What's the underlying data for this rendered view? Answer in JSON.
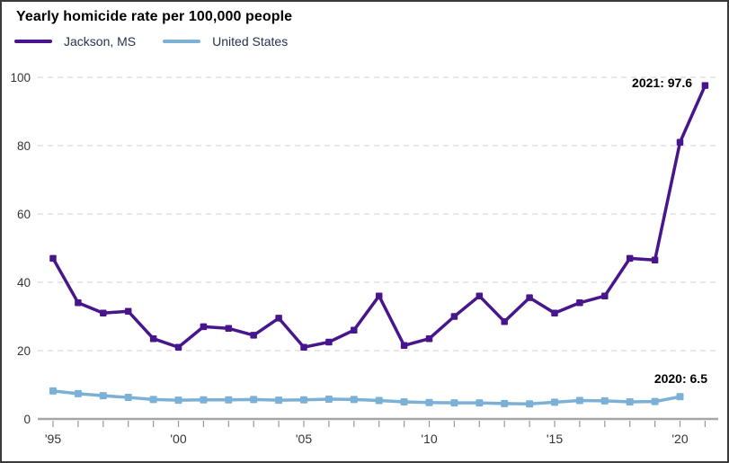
{
  "chart": {
    "title": "Yearly homicide rate per 100,000 people",
    "background_color": "#ffffff",
    "border_color": "#3a3a3a",
    "legend_position": "top-left",
    "legend": [
      {
        "label": "Jackson, MS",
        "color": "#48168c"
      },
      {
        "label": "United States",
        "color": "#7bb1d7"
      }
    ]
  },
  "chart_data": {
    "type": "line",
    "title": "Yearly homicide rate per 100,000 people",
    "xlabel": "",
    "ylabel": "",
    "x_years": [
      1995,
      1996,
      1997,
      1998,
      1999,
      2000,
      2001,
      2002,
      2003,
      2004,
      2005,
      2006,
      2007,
      2008,
      2009,
      2010,
      2011,
      2012,
      2013,
      2014,
      2015,
      2016,
      2017,
      2018,
      2019,
      2020,
      2021
    ],
    "series": [
      {
        "name": "Jackson, MS",
        "color": "#48168c",
        "marker": "square",
        "start_year": 1995,
        "values": [
          47,
          34,
          31,
          31.5,
          23.5,
          21,
          27,
          26.5,
          24.5,
          29.5,
          21,
          22.5,
          26,
          36,
          21.5,
          23.5,
          30,
          36,
          28.5,
          35.5,
          31,
          34,
          36,
          47,
          46.5,
          81,
          97.6
        ]
      },
      {
        "name": "United States",
        "color": "#7bb1d7",
        "marker": "square",
        "start_year": 1995,
        "values": [
          8.2,
          7.4,
          6.8,
          6.3,
          5.7,
          5.5,
          5.6,
          5.6,
          5.7,
          5.5,
          5.6,
          5.8,
          5.7,
          5.4,
          5.0,
          4.8,
          4.7,
          4.7,
          4.5,
          4.4,
          4.9,
          5.4,
          5.3,
          5.0,
          5.1,
          6.5
        ]
      }
    ],
    "annotations": [
      {
        "text": "2021: 97.6",
        "series": "Jackson, MS",
        "year": 2021,
        "value": 97.6
      },
      {
        "text": "2020: 6.5",
        "series": "United States",
        "year": 2020,
        "value": 6.5
      }
    ],
    "yticks": [
      0,
      20,
      40,
      60,
      80,
      100
    ],
    "xtick_labels": [
      {
        "year": 1995,
        "label": "'95"
      },
      {
        "year": 2000,
        "label": "'00"
      },
      {
        "year": 2005,
        "label": "'05"
      },
      {
        "year": 2010,
        "label": "'10"
      },
      {
        "year": 2015,
        "label": "'15"
      },
      {
        "year": 2020,
        "label": "'20"
      }
    ],
    "ylim": [
      0,
      105
    ],
    "grid": "horizontal-dashed",
    "grid_color": "#d2d2d2",
    "axis_line_color": "#a6a6a6",
    "tick_color": "#999999",
    "axis_text_color": "#333333"
  }
}
